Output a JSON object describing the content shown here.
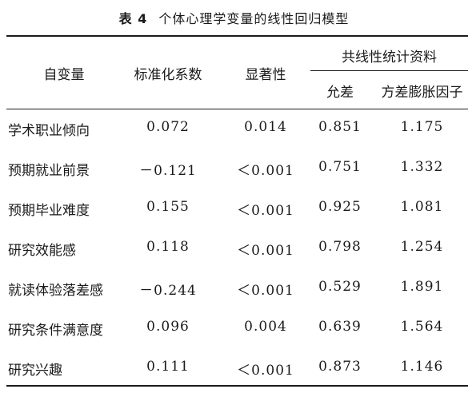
{
  "caption": {
    "label": "表 4",
    "title": "个体心理学变量的线性回归模型"
  },
  "headers": {
    "variable": "自变量",
    "std_coef": "标准化系数",
    "significance": "显著性",
    "collinearity_group": "共线性统计资料",
    "tolerance": "允差",
    "vif": "方差膨胀因子"
  },
  "rows": [
    {
      "name": "学术职业倾向",
      "coef": "0.072",
      "sig": "0.014",
      "tol": "0.851",
      "vif": "1.175"
    },
    {
      "name": "预期就业前景",
      "coef": "－0.121",
      "sig": "＜0.001",
      "tol": "0.751",
      "vif": "1.332"
    },
    {
      "name": "预期毕业难度",
      "coef": "0.155",
      "sig": "＜0.001",
      "tol": "0.925",
      "vif": "1.081"
    },
    {
      "name": "研究效能感",
      "coef": "0.118",
      "sig": "＜0.001",
      "tol": "0.798",
      "vif": "1.254"
    },
    {
      "name": "就读体验落差感",
      "coef": "－0.244",
      "sig": "＜0.001",
      "tol": "0.529",
      "vif": "1.891"
    },
    {
      "name": "研究条件满意度",
      "coef": "0.096",
      "sig": "0.004",
      "tol": "0.639",
      "vif": "1.564"
    },
    {
      "name": "研究兴趣",
      "coef": "0.111",
      "sig": "＜0.001",
      "tol": "0.873",
      "vif": "1.146"
    }
  ]
}
